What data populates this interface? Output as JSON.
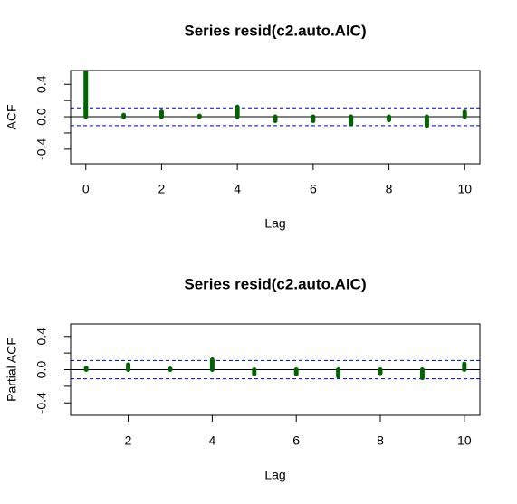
{
  "chart_data": [
    {
      "type": "acf",
      "title": "Series  resid(c2.auto.AIC)",
      "x_label": "Lag",
      "y_label": "ACF",
      "x": [
        0,
        1,
        2,
        3,
        4,
        5,
        6,
        7,
        8,
        9,
        10
      ],
      "values": [
        1,
        0.02,
        0.06,
        0.01,
        0.12,
        -0.05,
        -0.05,
        -0.09,
        -0.04,
        -0.11,
        0.06
      ],
      "color": "#006400",
      "ci": 0.11,
      "ci_color": "#0000cc",
      "xlim": [
        -0.4,
        10.4
      ],
      "xticks": [
        0,
        2,
        4,
        6,
        8,
        10
      ],
      "ylim": [
        -0.58,
        0.57
      ],
      "yticks": [
        {
          "value": -0.4,
          "label": "-0.4"
        },
        {
          "value": 0,
          "label": "0.0"
        },
        {
          "value": 0.4,
          "label": "0.4"
        }
      ],
      "minor_yticks": [
        -0.2,
        0.2
      ]
    },
    {
      "type": "acf",
      "title": "Series  resid(c2.auto.AIC)",
      "x_label": "Lag",
      "y_label": "Partial ACF",
      "x": [
        1,
        2,
        3,
        4,
        5,
        6,
        7,
        8,
        9,
        10
      ],
      "values": [
        0.02,
        0.06,
        0.01,
        0.12,
        -0.05,
        -0.05,
        -0.08,
        -0.04,
        -0.1,
        0.07
      ],
      "color": "#006400",
      "ci": 0.11,
      "ci_color": "#0000cc",
      "xlim": [
        0.63,
        10.37
      ],
      "xticks": [
        2,
        4,
        6,
        8,
        10
      ],
      "ylim": [
        -0.55,
        0.55
      ],
      "yticks": [
        {
          "value": -0.4,
          "label": "-0.4"
        },
        {
          "value": 0,
          "label": "0.0"
        },
        {
          "value": 0.4,
          "label": "0.4"
        }
      ],
      "minor_yticks": [
        -0.2,
        0.2
      ]
    }
  ]
}
